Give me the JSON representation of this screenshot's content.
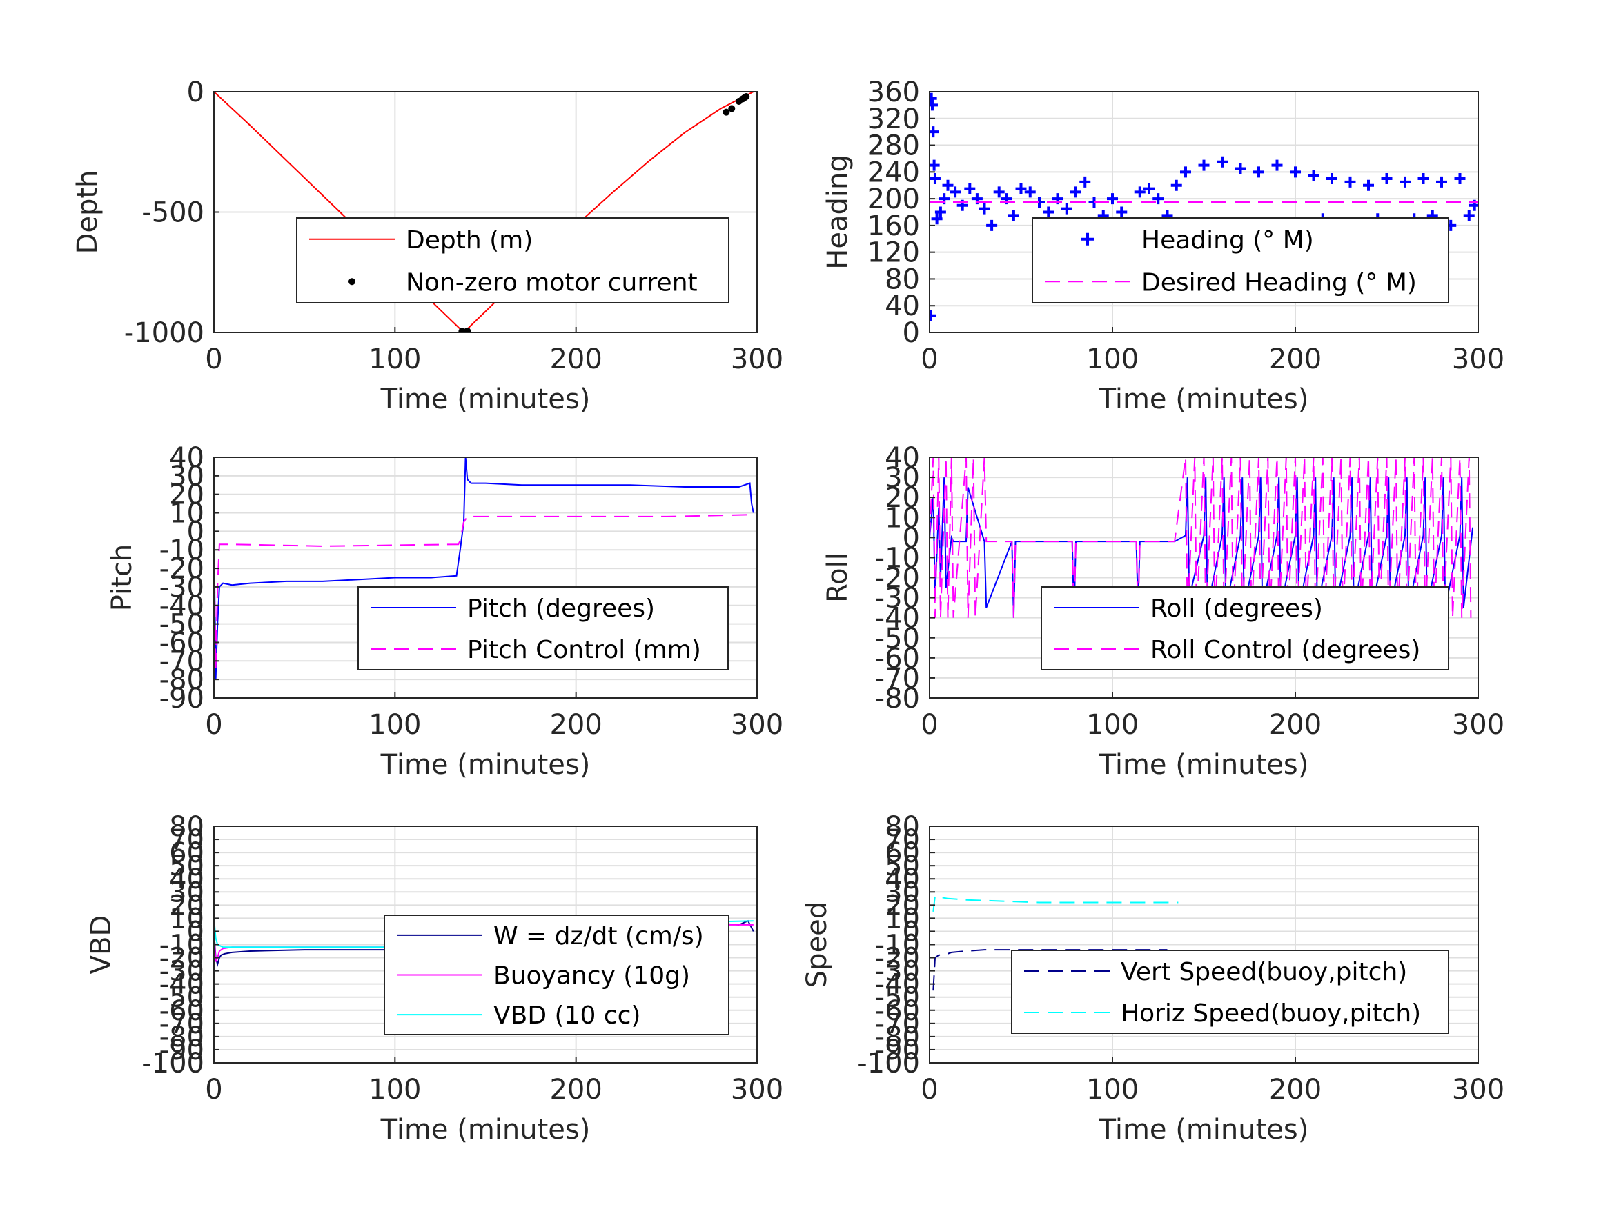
{
  "figure": {
    "background": "#ffffff"
  },
  "chart_data": [
    {
      "id": "depth",
      "type": "line",
      "xlabel": "Time (minutes)",
      "ylabel": "Depth",
      "xlim": [
        0,
        300
      ],
      "ylim": [
        -1000,
        0
      ],
      "xticks": [
        0,
        100,
        200,
        300
      ],
      "yticks": [
        -1000,
        -500,
        0
      ],
      "grid": true,
      "legend_position": "center-right",
      "series": [
        {
          "name": "Depth (m)",
          "style": "line",
          "color": "#ff0000",
          "x": [
            0,
            20,
            40,
            60,
            80,
            100,
            120,
            138,
            160,
            180,
            200,
            220,
            240,
            260,
            280,
            298
          ],
          "y": [
            0,
            -140,
            -285,
            -430,
            -575,
            -720,
            -870,
            -1000,
            -840,
            -700,
            -555,
            -420,
            -290,
            -170,
            -70,
            0
          ]
        },
        {
          "name": "Non-zero motor current",
          "style": "points",
          "color": "#000000",
          "x": [
            137,
            138,
            139,
            140,
            283,
            286,
            290,
            292,
            293,
            294
          ],
          "y": [
            -995,
            -1000,
            -998,
            -994,
            -85,
            -70,
            -40,
            -30,
            -25,
            -20
          ]
        }
      ]
    },
    {
      "id": "heading",
      "type": "scatter",
      "xlabel": "Time (minutes)",
      "ylabel": "Heading",
      "xlim": [
        0,
        300
      ],
      "ylim": [
        0,
        360
      ],
      "xticks": [
        0,
        100,
        200,
        300
      ],
      "yticks": [
        0,
        40,
        80,
        120,
        160,
        200,
        240,
        280,
        320,
        360
      ],
      "grid": true,
      "legend_position": "center-right",
      "series": [
        {
          "name": "Heading (° M)",
          "style": "plus",
          "color": "#0000ff",
          "x": [
            0.5,
            1,
            1.5,
            2,
            2.5,
            3,
            4,
            6,
            8,
            10,
            14,
            18,
            22,
            26,
            30,
            34,
            38,
            42,
            46,
            50,
            55,
            60,
            65,
            70,
            75,
            80,
            85,
            90,
            95,
            100,
            105,
            110,
            115,
            120,
            125,
            130,
            135,
            140,
            145,
            150,
            155,
            160,
            165,
            170,
            175,
            180,
            185,
            190,
            195,
            200,
            205,
            210,
            215,
            220,
            225,
            230,
            235,
            240,
            245,
            250,
            255,
            260,
            265,
            270,
            275,
            280,
            285,
            290,
            295,
            298
          ],
          "y": [
            25,
            350,
            340,
            300,
            250,
            230,
            170,
            180,
            200,
            220,
            210,
            190,
            215,
            200,
            185,
            160,
            210,
            200,
            175,
            215,
            210,
            195,
            180,
            200,
            185,
            210,
            225,
            195,
            175,
            200,
            180,
            160,
            210,
            215,
            200,
            175,
            220,
            240,
            150,
            250,
            130,
            255,
            110,
            245,
            150,
            240,
            120,
            250,
            140,
            240,
            160,
            235,
            170,
            230,
            165,
            225,
            160,
            220,
            170,
            230,
            165,
            225,
            170,
            230,
            175,
            225,
            160,
            230,
            175,
            190
          ]
        },
        {
          "name": "Desired Heading (° M)",
          "style": "dash",
          "color": "#ff00ff",
          "x": [
            0,
            300
          ],
          "y": [
            195,
            195
          ]
        }
      ]
    },
    {
      "id": "pitch",
      "type": "line",
      "xlabel": "Time (minutes)",
      "ylabel": "Pitch",
      "xlim": [
        0,
        300
      ],
      "ylim": [
        -90,
        40
      ],
      "xticks": [
        0,
        100,
        200,
        300
      ],
      "yticks": [
        -90,
        -80,
        -70,
        -60,
        -50,
        -40,
        -30,
        -20,
        -10,
        0,
        10,
        20,
        30,
        40
      ],
      "grid": true,
      "legend_position": "bottom-right",
      "series": [
        {
          "name": "Pitch (degrees)",
          "style": "line",
          "color": "#0000ff",
          "x": [
            0,
            1,
            2,
            3,
            5,
            10,
            20,
            40,
            60,
            80,
            100,
            120,
            134,
            136,
            138,
            139,
            140,
            142,
            150,
            170,
            200,
            230,
            260,
            280,
            290,
            296,
            297,
            298
          ],
          "y": [
            0,
            -80,
            -50,
            -30,
            -28,
            -29,
            -28,
            -27,
            -27,
            -26,
            -25,
            -25,
            -24,
            -10,
            5,
            40,
            28,
            26,
            26,
            25,
            25,
            25,
            24,
            24,
            24,
            26,
            15,
            10
          ]
        },
        {
          "name": "Pitch Control (mm)",
          "style": "dash",
          "color": "#ff00ff",
          "x": [
            0,
            1,
            2,
            3,
            10,
            60,
            135,
            136,
            138,
            140,
            170,
            200,
            250,
            298
          ],
          "y": [
            0,
            -75,
            -30,
            -7,
            -7,
            -8,
            -7,
            -5,
            5,
            8,
            8,
            8,
            8,
            9
          ]
        }
      ]
    },
    {
      "id": "roll",
      "type": "line",
      "xlabel": "Time (minutes)",
      "ylabel": "Roll",
      "xlim": [
        0,
        300
      ],
      "ylim": [
        -80,
        40
      ],
      "xticks": [
        0,
        100,
        200,
        300
      ],
      "yticks": [
        -80,
        -70,
        -60,
        -50,
        -40,
        -30,
        -20,
        -10,
        0,
        10,
        20,
        30,
        40
      ],
      "grid": true,
      "legend_position": "bottom-right",
      "series": [
        {
          "name": "Roll (degrees)",
          "style": "line",
          "color": "#0000ff",
          "x": [
            0,
            2,
            3,
            5,
            6,
            8,
            9,
            12,
            13,
            20,
            21,
            30,
            31,
            45,
            46,
            47,
            78,
            79,
            80,
            113,
            114,
            115,
            134,
            140,
            141,
            142,
            150,
            151,
            152,
            160,
            161,
            162,
            170,
            171,
            172,
            180,
            181,
            182,
            190,
            191,
            192,
            200,
            201,
            202,
            210,
            211,
            212,
            220,
            221,
            222,
            230,
            231,
            232,
            240,
            241,
            242,
            250,
            251,
            252,
            260,
            261,
            262,
            270,
            271,
            272,
            280,
            281,
            282,
            290,
            291,
            292,
            297
          ],
          "y": [
            0,
            20,
            -30,
            15,
            -20,
            30,
            -25,
            0,
            -2,
            -2,
            25,
            -2,
            -35,
            -2,
            -40,
            -2,
            -2,
            -40,
            -2,
            -2,
            -35,
            -2,
            -2,
            1,
            30,
            -30,
            1,
            30,
            -35,
            1,
            30,
            -35,
            1,
            30,
            -35,
            1,
            30,
            -35,
            1,
            30,
            -35,
            1,
            30,
            -35,
            1,
            30,
            -35,
            1,
            30,
            -35,
            1,
            30,
            -35,
            1,
            30,
            -35,
            1,
            30,
            -35,
            1,
            30,
            -35,
            1,
            30,
            -35,
            1,
            30,
            -35,
            1,
            30,
            -35,
            5
          ]
        },
        {
          "name": "Roll Control (degrees)",
          "style": "dash",
          "color": "#ff00ff",
          "x": [
            0,
            2,
            3,
            5,
            6,
            9,
            10,
            12,
            13,
            20,
            21,
            24,
            25,
            30,
            31,
            40,
            45,
            46,
            47,
            78,
            79,
            80,
            113,
            114,
            115,
            134,
            140,
            141,
            145,
            146,
            150,
            151,
            155,
            156,
            160,
            161,
            165,
            166,
            170,
            171,
            175,
            176,
            180,
            181,
            185,
            186,
            190,
            191,
            195,
            196,
            200,
            201,
            205,
            206,
            210,
            211,
            215,
            216,
            220,
            221,
            225,
            226,
            230,
            231,
            235,
            236,
            240,
            241,
            245,
            246,
            250,
            251,
            255,
            256,
            260,
            261,
            265,
            266,
            270,
            271,
            275,
            276,
            280,
            281,
            285,
            286,
            290,
            291,
            295,
            296
          ],
          "y": [
            0,
            40,
            -40,
            40,
            -40,
            40,
            -40,
            40,
            -40,
            40,
            -40,
            40,
            -40,
            40,
            -2,
            -2,
            -2,
            -40,
            -2,
            -2,
            -40,
            -2,
            -2,
            -40,
            -2,
            -2,
            40,
            -40,
            40,
            -40,
            40,
            -40,
            40,
            -40,
            40,
            -40,
            40,
            -40,
            40,
            -40,
            40,
            -40,
            40,
            -40,
            40,
            -40,
            40,
            -40,
            40,
            -40,
            40,
            -40,
            40,
            -40,
            40,
            -40,
            40,
            -40,
            40,
            -40,
            40,
            -40,
            40,
            -40,
            40,
            -40,
            40,
            -40,
            40,
            -40,
            40,
            -40,
            40,
            -40,
            40,
            -40,
            40,
            -40,
            40,
            -40,
            40,
            -40,
            40,
            -40,
            40,
            -40,
            40,
            -40,
            40,
            -40
          ]
        }
      ]
    },
    {
      "id": "vbd",
      "type": "line",
      "xlabel": "Time (minutes)",
      "ylabel": "VBD",
      "xlim": [
        0,
        300
      ],
      "ylim": [
        -100,
        80
      ],
      "xticks": [
        0,
        100,
        200,
        300
      ],
      "yticks": [
        -100,
        -90,
        -80,
        -70,
        -60,
        -50,
        -40,
        -30,
        -20,
        -10,
        0,
        10,
        20,
        30,
        40,
        50,
        60,
        70,
        80
      ],
      "yticklabels": [
        "-100",
        "-90",
        "-80",
        "-70",
        "-60",
        "-50",
        "-40",
        "-30",
        "-20",
        "-10",
        "0",
        "10",
        "20",
        "30",
        "40",
        "50",
        "60",
        "70",
        "80"
      ],
      "grid": true,
      "legend_position": "bottom-right",
      "series": [
        {
          "name": "W = dz/dt (cm/s)",
          "style": "line",
          "color": "#00008b",
          "x": [
            0,
            1,
            2,
            3,
            4,
            6,
            10,
            20,
            50,
            80,
            110,
            130,
            135,
            136,
            138,
            140,
            142,
            150,
            200,
            250,
            280,
            290,
            295,
            298
          ],
          "y": [
            0,
            -20,
            -25,
            -20,
            -18,
            -17,
            -16,
            -15,
            -14,
            -14,
            -14,
            -14,
            -15,
            -12,
            0,
            8,
            7,
            7,
            6,
            6,
            6,
            5,
            8,
            0
          ]
        },
        {
          "name": "Buoyancy (10g)",
          "style": "line",
          "color": "#ff00ff",
          "x": [
            0,
            1,
            2,
            3,
            5,
            10,
            20,
            60,
            136,
            138,
            140,
            200,
            298
          ],
          "y": [
            0,
            -23,
            -20,
            -15,
            -13,
            -12,
            -12,
            -12,
            -12,
            0,
            5,
            5,
            5
          ]
        },
        {
          "name": "VBD (10 cc)",
          "style": "line",
          "color": "#00ffff",
          "x": [
            0,
            1,
            2,
            5,
            20,
            60,
            136,
            138,
            140,
            200,
            298
          ],
          "y": [
            10,
            -5,
            -10,
            -12,
            -12,
            -12,
            -12,
            0,
            5,
            5,
            8
          ]
        }
      ]
    },
    {
      "id": "speed",
      "type": "line",
      "xlabel": "Time (minutes)",
      "ylabel": "Speed",
      "xlim": [
        0,
        300
      ],
      "ylim": [
        -100,
        80
      ],
      "xticks": [
        0,
        100,
        200,
        300
      ],
      "yticks": [
        -100,
        -90,
        -80,
        -70,
        -60,
        -50,
        -40,
        -30,
        -20,
        -10,
        0,
        10,
        20,
        30,
        40,
        50,
        60,
        70,
        80
      ],
      "yticklabels": [
        "-100",
        "-90",
        "-80",
        "-70",
        "-60",
        "-50",
        "-40",
        "-30",
        "-20",
        "-10",
        "0",
        "10",
        "20",
        "30",
        "40",
        "50",
        "60",
        "70",
        "80"
      ],
      "grid": true,
      "legend_position": "bottom-right",
      "series": [
        {
          "name": "Vert Speed(buoy,pitch)",
          "style": "dash",
          "color": "#00008b",
          "x": [
            2,
            3,
            5,
            8,
            12,
            20,
            30,
            60,
            100,
            130
          ],
          "y": [
            -45,
            -20,
            -18,
            -18,
            -16,
            -15,
            -14,
            -14,
            -14,
            -14
          ]
        },
        {
          "name": "Horiz Speed(buoy,pitch)",
          "style": "dash",
          "color": "#00ffff",
          "x": [
            2,
            3,
            6,
            10,
            20,
            40,
            60,
            100,
            136
          ],
          "y": [
            15,
            27,
            26,
            25,
            24,
            23,
            22,
            22,
            22
          ]
        }
      ]
    }
  ]
}
